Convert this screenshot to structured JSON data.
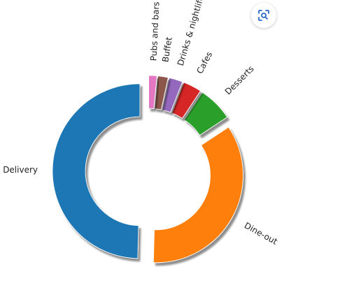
{
  "chart_data": {
    "type": "pie",
    "title": "",
    "categories": [
      "Delivery",
      "Dine-out",
      "Desserts",
      "Cafes",
      "Drinks & nightlife",
      "Buffet",
      "Pubs and bars"
    ],
    "values": [
      49.6,
      34.7,
      6.4,
      3.4,
      2.5,
      1.9,
      1.5
    ],
    "colors": [
      "#1f77b4",
      "#ff7f0e",
      "#2ca02c",
      "#d62728",
      "#9467bd",
      "#8c564b",
      "#e377c2"
    ],
    "donut": true,
    "shadow": true,
    "explode": [
      0.1,
      0.1,
      0.1,
      0.1,
      0.1,
      0.1,
      0.1
    ],
    "start_angle": 90,
    "counterclockwise": true,
    "legend": false
  },
  "toolbar": {
    "lens_icon": "lens-search-icon"
  }
}
